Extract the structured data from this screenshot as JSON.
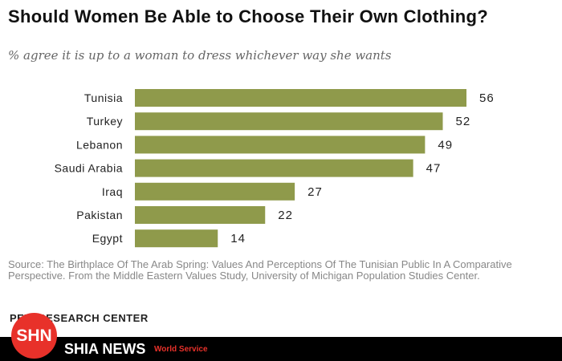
{
  "chart_data": {
    "type": "bar",
    "title": "Should Women Be Able to Choose Their Own Clothing?",
    "subtitle": "% agree it is up to a woman to dress whichever way she wants",
    "categories": [
      "Tunisia",
      "Turkey",
      "Lebanon",
      "Saudi Arabia",
      "Iraq",
      "Pakistan",
      "Egypt"
    ],
    "values": [
      56,
      52,
      49,
      47,
      27,
      22,
      14
    ],
    "xlabel": "",
    "ylabel": "",
    "xlim": [
      0,
      56
    ],
    "bar_color": "#8f9a4b",
    "source": "Source: The Birthplace Of The Arab Spring: Values And Perceptions Of The Tunisian Public In A Comparative Perspective. From the Middle Eastern Values Study, University of Michigan Population Studies Center."
  },
  "brand": "PEW RESEARCH CENTER",
  "watermark": {
    "logo": "SHN",
    "name": "SHIA NEWS",
    "tagline": "World Service"
  }
}
